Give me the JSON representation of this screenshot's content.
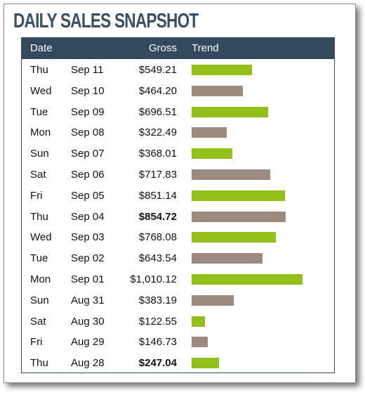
{
  "title": "DAILY SALES SNAPSHOT",
  "header": {
    "date": "Date",
    "gross": "Gross",
    "trend": "Trend"
  },
  "colors": {
    "green": "#93bf1a",
    "taupe": "#9c8a7e",
    "header_bg": "#34495e",
    "title": "#3b4f63"
  },
  "chart_data": {
    "type": "bar",
    "title": "DAILY SALES SNAPSHOT",
    "xlabel": "",
    "ylabel": "",
    "bar_scale_max": 1010.12,
    "rows": [
      {
        "day": "Thu",
        "date": "Sep 11",
        "gross": "$549.21",
        "value": 549.21,
        "bold": false,
        "color": "green"
      },
      {
        "day": "Wed",
        "date": "Sep 10",
        "gross": "$464.20",
        "value": 464.2,
        "bold": false,
        "color": "taupe"
      },
      {
        "day": "Tue",
        "date": "Sep 09",
        "gross": "$696.51",
        "value": 696.51,
        "bold": false,
        "color": "green"
      },
      {
        "day": "Mon",
        "date": "Sep 08",
        "gross": "$322.49",
        "value": 322.49,
        "bold": false,
        "color": "taupe"
      },
      {
        "day": "Sun",
        "date": "Sep 07",
        "gross": "$368.01",
        "value": 368.01,
        "bold": false,
        "color": "green"
      },
      {
        "day": "Sat",
        "date": "Sep 06",
        "gross": "$717.83",
        "value": 717.83,
        "bold": false,
        "color": "taupe"
      },
      {
        "day": "Fri",
        "date": "Sep 05",
        "gross": "$851.14",
        "value": 851.14,
        "bold": false,
        "color": "green"
      },
      {
        "day": "Thu",
        "date": "Sep 04",
        "gross": "$854.72",
        "value": 854.72,
        "bold": true,
        "color": "taupe"
      },
      {
        "day": "Wed",
        "date": "Sep 03",
        "gross": "$768.08",
        "value": 768.08,
        "bold": false,
        "color": "green"
      },
      {
        "day": "Tue",
        "date": "Sep 02",
        "gross": "$643.54",
        "value": 643.54,
        "bold": false,
        "color": "taupe"
      },
      {
        "day": "Mon",
        "date": "Sep 01",
        "gross": "$1,010.12",
        "value": 1010.12,
        "bold": false,
        "color": "green"
      },
      {
        "day": "Sun",
        "date": "Aug 31",
        "gross": "$383.19",
        "value": 383.19,
        "bold": false,
        "color": "taupe"
      },
      {
        "day": "Sat",
        "date": "Aug 30",
        "gross": "$122.55",
        "value": 122.55,
        "bold": false,
        "color": "green"
      },
      {
        "day": "Fri",
        "date": "Aug 29",
        "gross": "$146.73",
        "value": 146.73,
        "bold": false,
        "color": "taupe"
      },
      {
        "day": "Thu",
        "date": "Aug 28",
        "gross": "$247.04",
        "value": 247.04,
        "bold": true,
        "color": "green"
      }
    ]
  }
}
